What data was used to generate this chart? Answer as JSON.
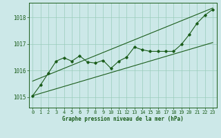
{
  "title": "Graphe pression niveau de la mer (hPa)",
  "bg_color": "#cce8e8",
  "grid_color": "#99ccbb",
  "line_color": "#1a5c1a",
  "text_color": "#1a5c1a",
  "xlim": [
    -0.5,
    23.5
  ],
  "ylim": [
    1014.6,
    1018.55
  ],
  "yticks": [
    1015,
    1016,
    1017,
    1018
  ],
  "xticks": [
    0,
    1,
    2,
    3,
    4,
    5,
    6,
    7,
    8,
    9,
    10,
    11,
    12,
    13,
    14,
    15,
    16,
    17,
    18,
    19,
    20,
    21,
    22,
    23
  ],
  "main_line_x": [
    0,
    1,
    2,
    3,
    4,
    5,
    6,
    7,
    8,
    9,
    10,
    11,
    12,
    13,
    14,
    15,
    16,
    17,
    18,
    19,
    20,
    21,
    22,
    23
  ],
  "main_line_y": [
    1015.05,
    1015.45,
    1015.9,
    1016.35,
    1016.48,
    1016.35,
    1016.55,
    1016.32,
    1016.28,
    1016.38,
    1016.08,
    1016.35,
    1016.5,
    1016.88,
    1016.78,
    1016.72,
    1016.72,
    1016.72,
    1016.72,
    1016.98,
    1017.35,
    1017.78,
    1018.08,
    1018.3
  ],
  "upper_line_x": [
    0,
    23
  ],
  "upper_line_y": [
    1015.6,
    1018.35
  ],
  "lower_line_x": [
    0,
    23
  ],
  "lower_line_y": [
    1015.05,
    1017.05
  ],
  "figw": 3.2,
  "figh": 2.0,
  "dpi": 100
}
